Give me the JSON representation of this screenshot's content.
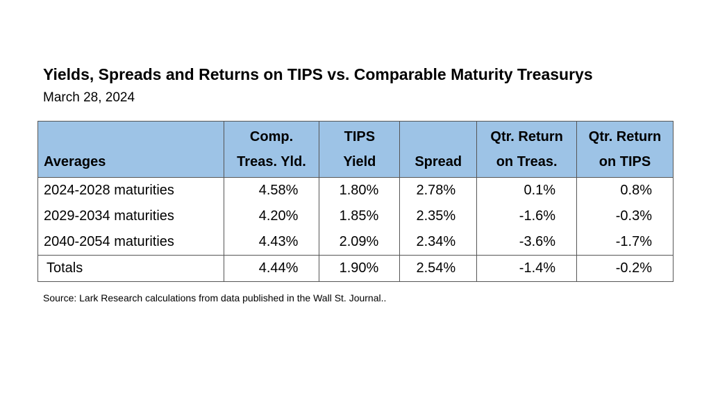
{
  "title": "Yields, Spreads and Returns on TIPS vs. Comparable Maturity Treasurys",
  "subtitle": "March 28, 2024",
  "table": {
    "header": [
      [
        "Averages"
      ],
      [
        "Comp.",
        "Treas. Yld."
      ],
      [
        "TIPS",
        "Yield"
      ],
      [
        "Spread"
      ],
      [
        "Qtr. Return",
        "on Treas."
      ],
      [
        "Qtr. Return",
        "on TIPS"
      ]
    ],
    "rows": [
      [
        "2024-2028 maturities",
        "4.58%",
        "1.80%",
        "2.78%",
        "0.1%",
        "0.8%"
      ],
      [
        "2029-2034 maturities",
        "4.20%",
        "1.85%",
        "2.35%",
        "-1.6%",
        "-0.3%"
      ],
      [
        "2040-2054 maturities",
        "4.43%",
        "2.09%",
        "2.34%",
        "-3.6%",
        "-1.7%"
      ],
      [
        "Totals",
        "4.44%",
        "1.90%",
        "2.54%",
        "-1.4%",
        "-0.2%"
      ]
    ]
  },
  "source": "Source:  Lark Research calculations from data published in the Wall St. Journal.."
}
